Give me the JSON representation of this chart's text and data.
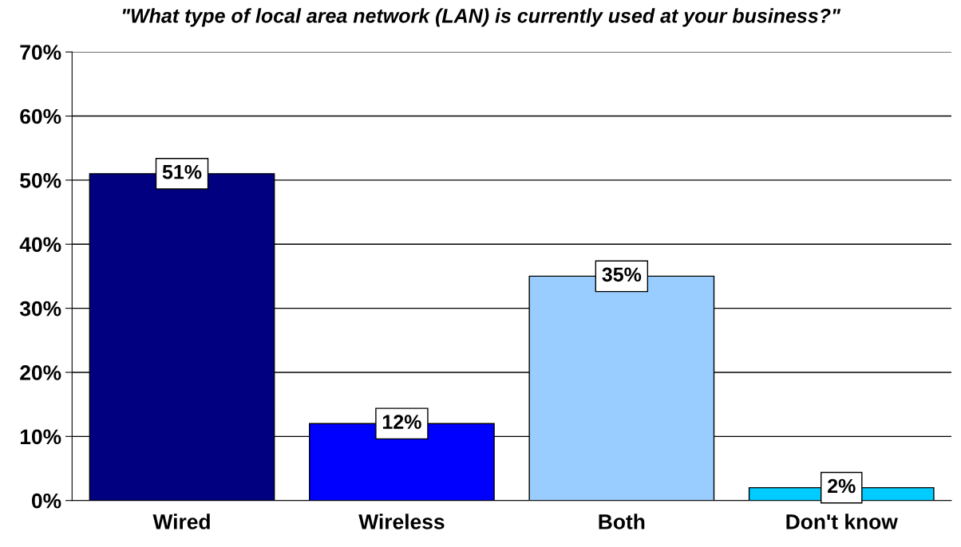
{
  "chart_data": {
    "type": "bar",
    "title": "\"What type of local area network (LAN) is currently used at your business?\"",
    "categories": [
      "Wired",
      "Wireless",
      "Both",
      "Don't know"
    ],
    "values": [
      51,
      12,
      35,
      2
    ],
    "colors": [
      "#000080",
      "#0000ff",
      "#99ccff",
      "#00ccff"
    ],
    "value_labels": [
      "51%",
      "12%",
      "35%",
      "2%"
    ],
    "ylim": [
      0,
      70
    ],
    "yticks": [
      {
        "value": 0,
        "label": "0%"
      },
      {
        "value": 10,
        "label": "10%"
      },
      {
        "value": 20,
        "label": "20%"
      },
      {
        "value": 30,
        "label": "30%"
      },
      {
        "value": 40,
        "label": "40%"
      },
      {
        "value": 50,
        "label": "50%"
      },
      {
        "value": 60,
        "label": "60%"
      },
      {
        "value": 70,
        "label": "70%"
      }
    ],
    "grid": "y",
    "legend": false
  }
}
